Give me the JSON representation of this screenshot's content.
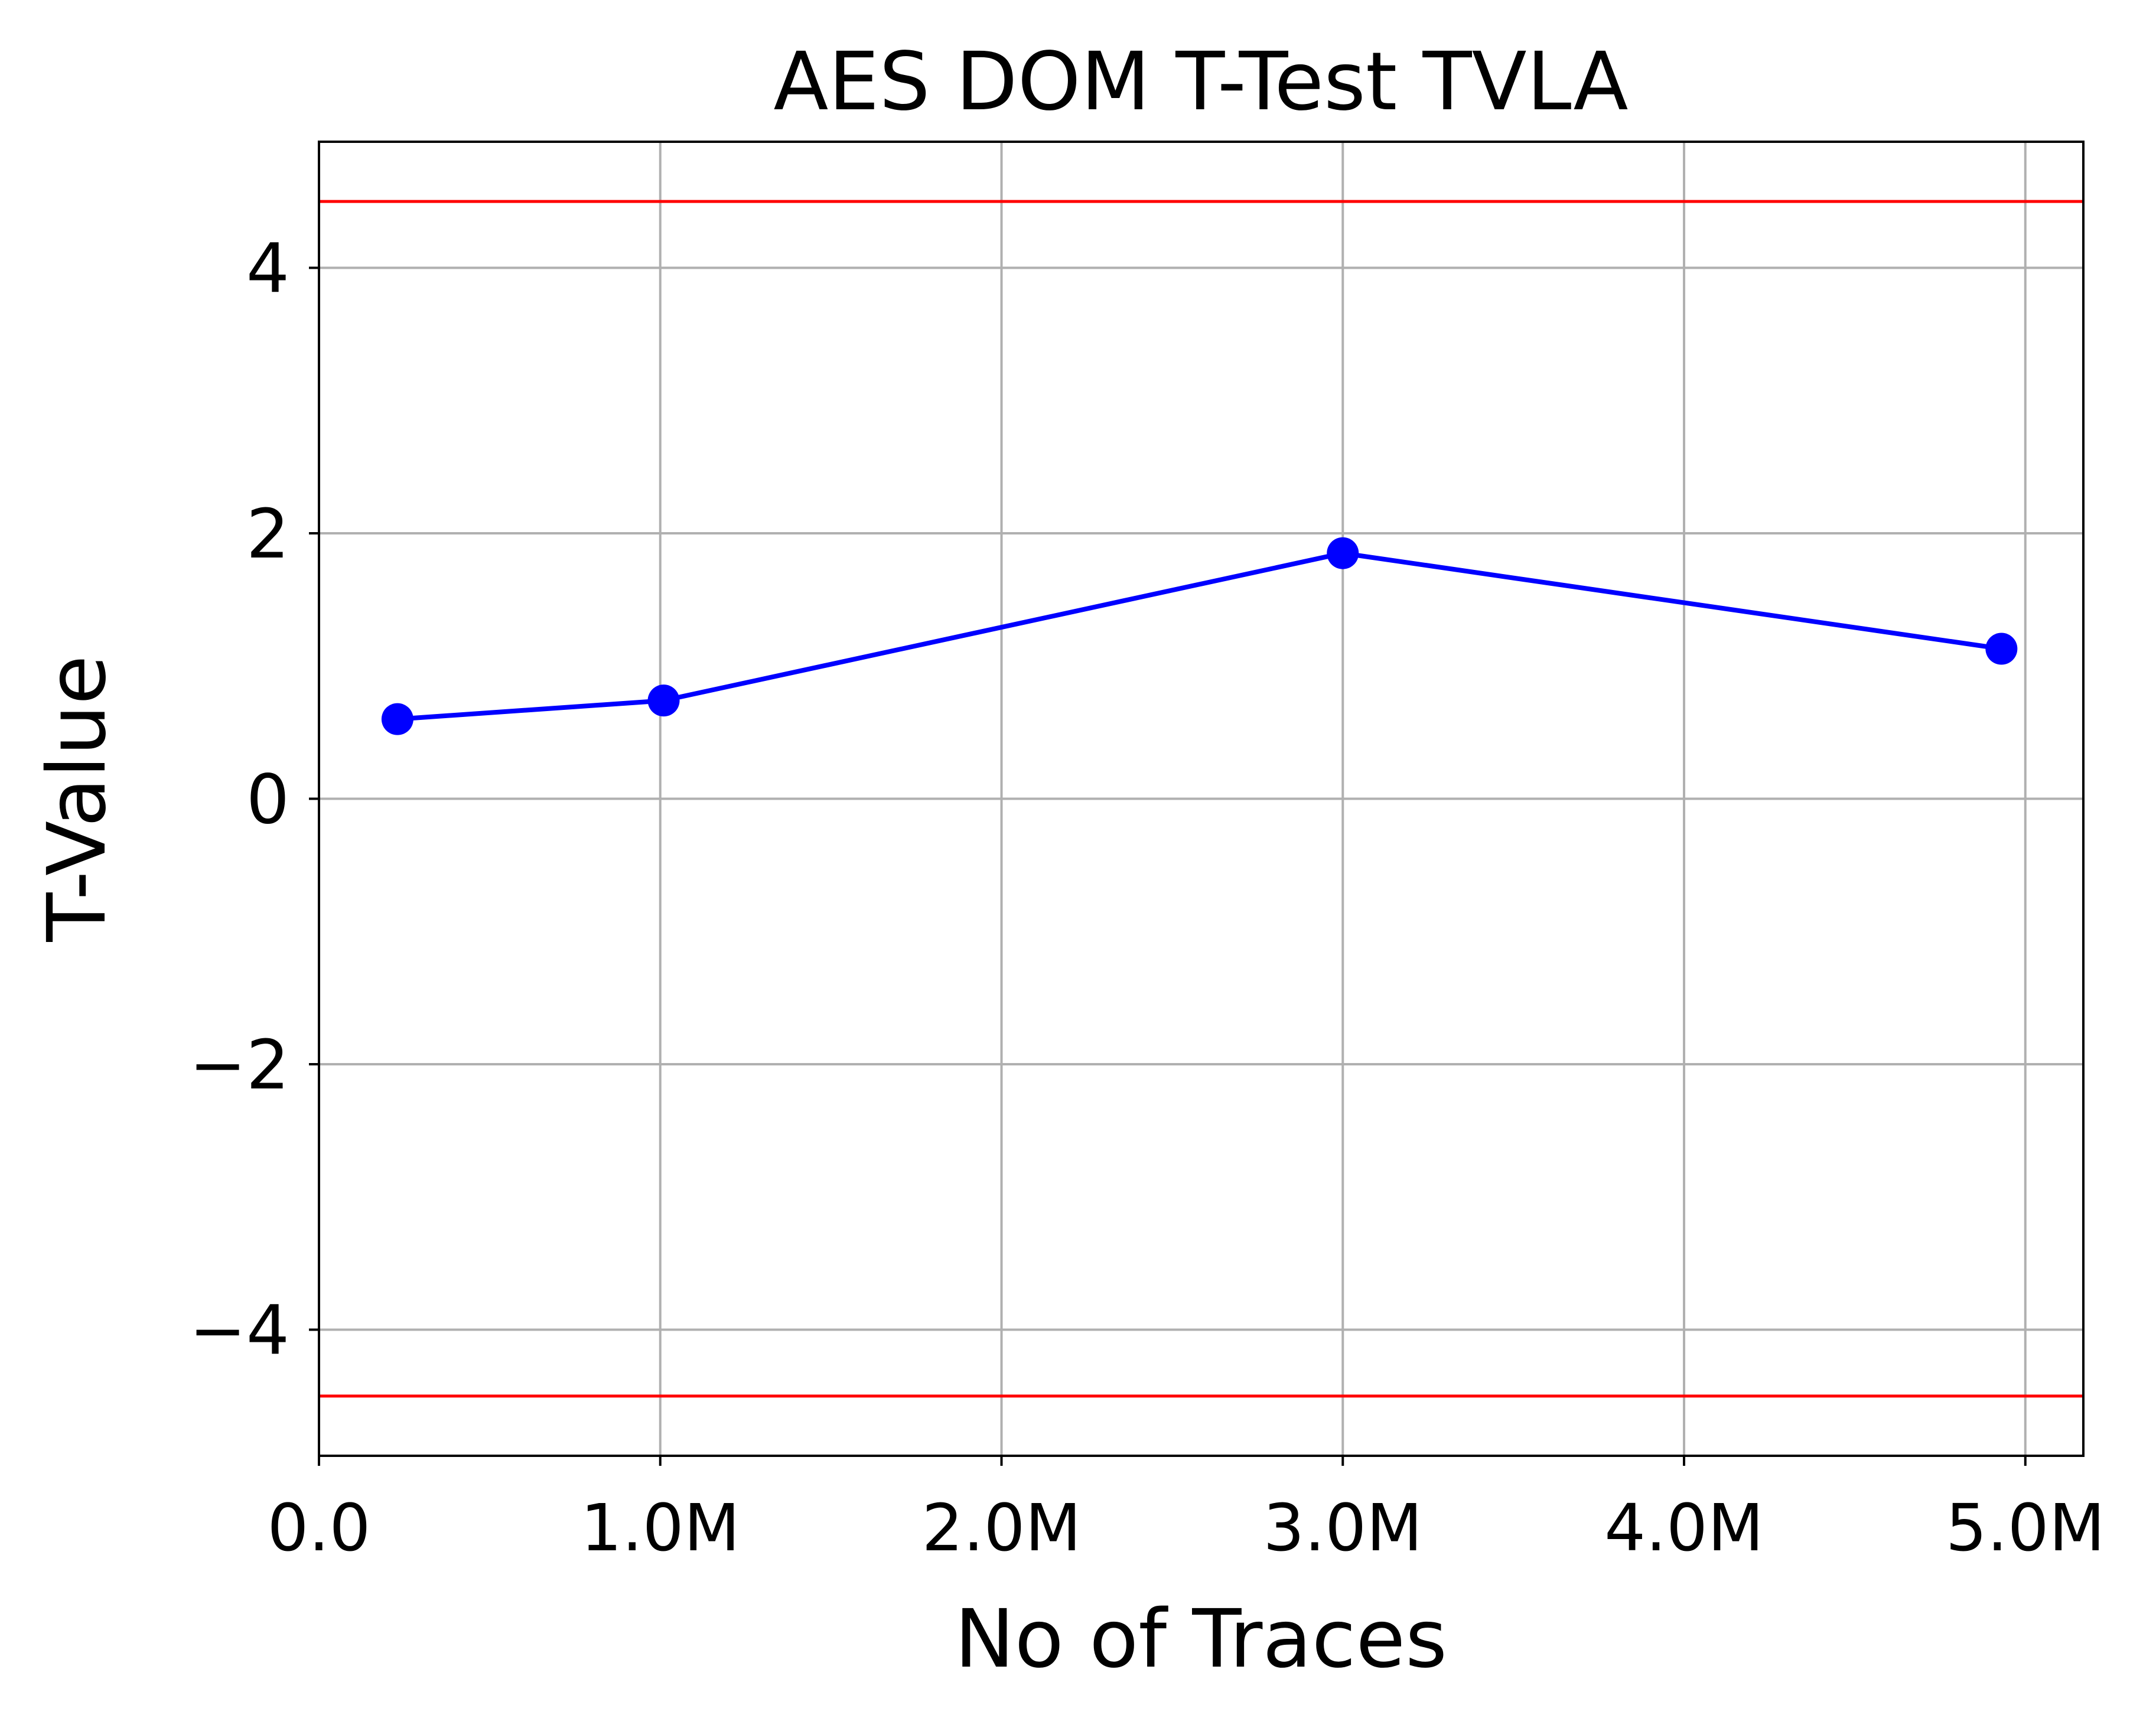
{
  "chart_data": {
    "type": "line",
    "title": "AES DOM T-Test TVLA",
    "xlabel": "No of Traces",
    "ylabel": "T-Value",
    "xlim": [
      0,
      5170000
    ],
    "ylim": [
      -4.95,
      4.95
    ],
    "grid": true,
    "x_ticks": [
      {
        "value": 0,
        "label": "0.0"
      },
      {
        "value": 1000000,
        "label": "1.0M"
      },
      {
        "value": 2000000,
        "label": "2.0M"
      },
      {
        "value": 3000000,
        "label": "3.0M"
      },
      {
        "value": 4000000,
        "label": "4.0M"
      },
      {
        "value": 5000000,
        "label": "5.0M"
      }
    ],
    "y_ticks": [
      {
        "value": 4,
        "label": "4"
      },
      {
        "value": 2,
        "label": "2"
      },
      {
        "value": 0,
        "label": "0"
      },
      {
        "value": -2,
        "label": "−2"
      },
      {
        "value": -4,
        "label": "−4"
      }
    ],
    "series": [
      {
        "color": "#0000ff",
        "marker": "circle",
        "points": [
          {
            "x": 230000,
            "y": 0.6
          },
          {
            "x": 1010000,
            "y": 0.74
          },
          {
            "x": 3000000,
            "y": 1.85
          },
          {
            "x": 4930000,
            "y": 1.13
          }
        ]
      }
    ],
    "threshold_lines": [
      {
        "y": 4.5,
        "color": "#ff0000"
      },
      {
        "y": -4.5,
        "color": "#ff0000"
      }
    ]
  }
}
